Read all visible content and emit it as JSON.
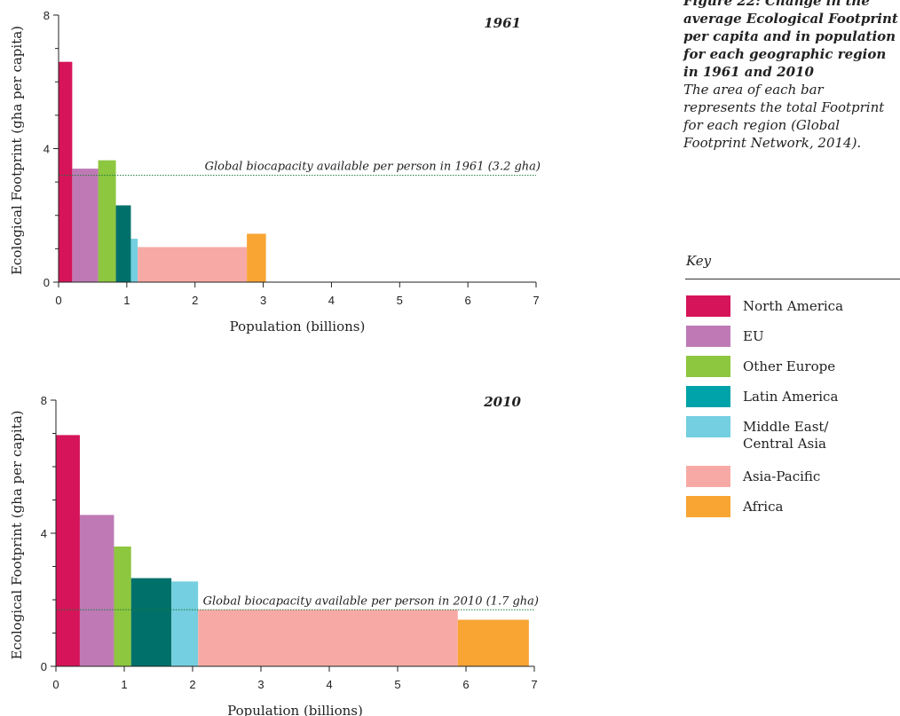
{
  "caption": {
    "title": "Figure 22: Change in the average Ecological Footprint per capita and in population for each geographic region in 1961 and 2010",
    "body": "The area of each bar represents the total Footprint for each region (Global Footprint Network, 2014)."
  },
  "legend": {
    "title": "Key",
    "items": [
      {
        "label": "North America",
        "color": "#d6145a"
      },
      {
        "label": "EU",
        "color": "#bf7ab6"
      },
      {
        "label": "Other Europe",
        "color": "#8dc63f"
      },
      {
        "label": "Latin America",
        "color": "#00a3a9"
      },
      {
        "label": "Middle East/ Central Asia",
        "color": "#74cfe0"
      },
      {
        "label": "Asia-Pacific",
        "color": "#f7aaa5"
      },
      {
        "label": "Africa",
        "color": "#f8a534"
      }
    ]
  },
  "chart_data": [
    {
      "type": "bar",
      "title": "1961",
      "xlabel": "Population (billions)",
      "ylabel": "Ecological Footprint (gha per capita)",
      "xlim": [
        0,
        7
      ],
      "ylim": [
        0,
        8
      ],
      "xticks": [
        0,
        1,
        2,
        3,
        4,
        5,
        6,
        7
      ],
      "yticks": [
        0,
        4,
        8
      ],
      "grid": false,
      "reference_line": {
        "label": "Global biocapacity available per person in 1961 (3.2 gha)",
        "value": 3.2,
        "color": "#1a7a3a"
      },
      "series": [
        {
          "region": "North America",
          "color": "#d6145a",
          "x_start": 0.0,
          "x_end": 0.2,
          "value": 6.6
        },
        {
          "region": "EU",
          "color": "#bf7ab6",
          "x_start": 0.2,
          "x_end": 0.58,
          "value": 3.4
        },
        {
          "region": "Other Europe",
          "color": "#8dc63f",
          "x_start": 0.58,
          "x_end": 0.84,
          "value": 3.65
        },
        {
          "region": "Latin America",
          "color": "#00706b",
          "x_start": 0.84,
          "x_end": 1.06,
          "value": 2.3
        },
        {
          "region": "Middle East/ Central Asia",
          "color": "#74cfe0",
          "x_start": 1.06,
          "x_end": 1.16,
          "value": 1.3
        },
        {
          "region": "Asia-Pacific",
          "color": "#f7aaa5",
          "x_start": 1.16,
          "x_end": 2.76,
          "value": 1.05
        },
        {
          "region": "Africa",
          "color": "#f8a534",
          "x_start": 2.76,
          "x_end": 3.04,
          "value": 1.45
        }
      ]
    },
    {
      "type": "bar",
      "title": "2010",
      "xlabel": "Population (billions)",
      "ylabel": "Ecological Footprint (gha per capita)",
      "xlim": [
        0,
        7
      ],
      "ylim": [
        0,
        8
      ],
      "xticks": [
        0,
        1,
        2,
        3,
        4,
        5,
        6,
        7
      ],
      "yticks": [
        0,
        4,
        8
      ],
      "grid": false,
      "reference_line": {
        "label": "Global biocapacity available per person in 2010 (1.7 gha)",
        "value": 1.7,
        "color": "#1a7a3a"
      },
      "series": [
        {
          "region": "North America",
          "color": "#d6145a",
          "x_start": 0.0,
          "x_end": 0.35,
          "value": 6.95
        },
        {
          "region": "EU",
          "color": "#bf7ab6",
          "x_start": 0.35,
          "x_end": 0.85,
          "value": 4.55
        },
        {
          "region": "Other Europe",
          "color": "#8dc63f",
          "x_start": 0.85,
          "x_end": 1.1,
          "value": 3.6
        },
        {
          "region": "Latin America",
          "color": "#00706b",
          "x_start": 1.1,
          "x_end": 1.69,
          "value": 2.65
        },
        {
          "region": "Middle East/ Central Asia",
          "color": "#74cfe0",
          "x_start": 1.69,
          "x_end": 2.08,
          "value": 2.55
        },
        {
          "region": "Asia-Pacific",
          "color": "#f7aaa5",
          "x_start": 2.08,
          "x_end": 5.88,
          "value": 1.7
        },
        {
          "region": "Africa",
          "color": "#f8a534",
          "x_start": 5.88,
          "x_end": 6.92,
          "value": 1.4
        }
      ]
    }
  ]
}
